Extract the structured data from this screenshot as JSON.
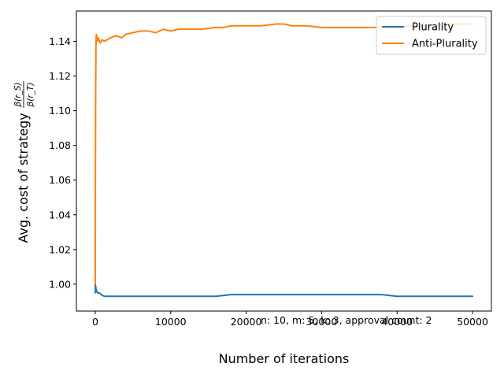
{
  "chart_data": {
    "type": "line",
    "xlabel": "Number of iterations",
    "ylabel": "Avg. cost of strategy",
    "ylabel_fraction": {
      "numerator": "β(r_S)",
      "denominator": "β(r_T)"
    },
    "annotation": "n: 10, m: 5, k: 3, approval count: 2",
    "xlim": [
      -2500,
      52500
    ],
    "ylim": [
      0.9845,
      1.1575
    ],
    "xticks": [
      0,
      10000,
      20000,
      30000,
      40000,
      50000
    ],
    "yticks": [
      1.0,
      1.02,
      1.04,
      1.06,
      1.08,
      1.1,
      1.12,
      1.14
    ],
    "legend_position": "top-right",
    "series": [
      {
        "name": "Plurality",
        "color": "#1f77b4",
        "x": [
          0,
          20,
          50,
          100,
          200,
          300,
          500,
          800,
          1200,
          1600,
          2000,
          3000,
          4000,
          5000,
          6000,
          7000,
          8000,
          9000,
          10000,
          12000,
          14000,
          16000,
          18000,
          20000,
          22000,
          23000,
          24000,
          25000,
          26000,
          27000,
          28000,
          30000,
          32000,
          34000,
          36000,
          38000,
          40000,
          42000,
          44000,
          45000,
          46000,
          48000,
          50000
        ],
        "values": [
          1.0,
          0.995,
          0.999,
          0.997,
          0.996,
          0.995,
          0.995,
          0.994,
          0.993,
          0.993,
          0.993,
          0.993,
          0.993,
          0.993,
          0.993,
          0.993,
          0.993,
          0.993,
          0.993,
          0.993,
          0.993,
          0.993,
          0.994,
          0.994,
          0.994,
          0.994,
          0.994,
          0.994,
          0.994,
          0.994,
          0.994,
          0.994,
          0.994,
          0.994,
          0.994,
          0.994,
          0.993,
          0.993,
          0.993,
          0.993,
          0.993,
          0.993,
          0.993
        ]
      },
      {
        "name": "Anti-Plurality",
        "color": "#ff7f0e",
        "x": [
          0,
          20,
          50,
          100,
          150,
          200,
          300,
          400,
          500,
          700,
          900,
          1200,
          1600,
          2000,
          2500,
          3000,
          3500,
          4000,
          5000,
          6000,
          7000,
          8000,
          9000,
          10000,
          11000,
          12000,
          14000,
          16000,
          17000,
          18000,
          20000,
          22000,
          24000,
          25000,
          26000,
          28000,
          30000,
          32000,
          34000,
          36000,
          38000,
          40000,
          42000,
          44000,
          46000,
          48000,
          50000
        ],
        "values": [
          1.0,
          1.06,
          1.11,
          1.14,
          1.144,
          1.143,
          1.14,
          1.142,
          1.141,
          1.139,
          1.141,
          1.14,
          1.141,
          1.142,
          1.143,
          1.143,
          1.142,
          1.144,
          1.145,
          1.146,
          1.146,
          1.145,
          1.147,
          1.146,
          1.147,
          1.147,
          1.147,
          1.148,
          1.148,
          1.149,
          1.149,
          1.149,
          1.15,
          1.15,
          1.149,
          1.149,
          1.148,
          1.148,
          1.148,
          1.148,
          1.148,
          1.148,
          1.149,
          1.149,
          1.15,
          1.15,
          1.15
        ]
      }
    ]
  }
}
